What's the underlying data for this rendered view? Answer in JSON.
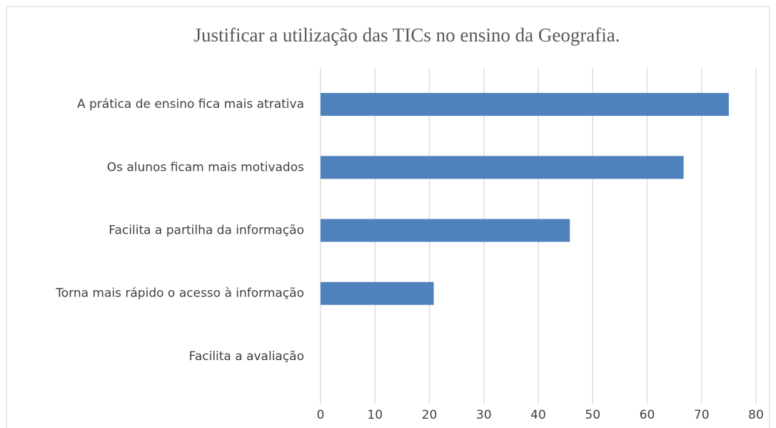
{
  "chart_data": {
    "type": "bar",
    "orientation": "horizontal",
    "title": "Justificar a utilização das TICs no ensino da Geografia.",
    "categories": [
      "A prática de ensino fica mais atrativa",
      "Os alunos ficam mais motivados",
      "Facilita a partilha da informação",
      "Torna mais rápido o acesso à informação",
      "Facilita a avaliação"
    ],
    "values": [
      75,
      66.7,
      45.8,
      20.8,
      0
    ],
    "color": "#4f81bd",
    "xlim": [
      0,
      80
    ],
    "xticks": [
      0,
      10,
      20,
      30,
      40,
      50,
      60,
      70,
      80
    ],
    "grid": true
  }
}
